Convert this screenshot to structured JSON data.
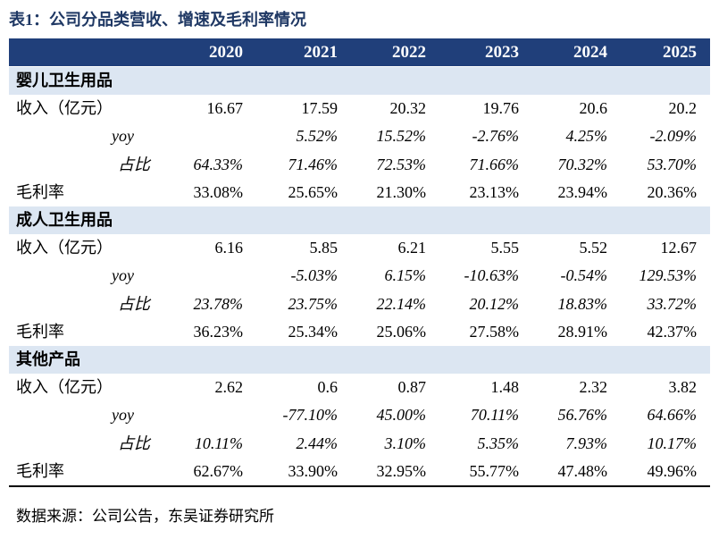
{
  "header": {
    "title": "表1：公司分品类营收、增速及毛利率情况"
  },
  "table": {
    "columns": [
      "2020",
      "2021",
      "2022",
      "2023",
      "2024",
      "2025"
    ],
    "sections": [
      {
        "name": "婴儿卫生用品",
        "rows": [
          {
            "label": "收入（亿元）",
            "values": [
              "16.67",
              "17.59",
              "20.32",
              "19.76",
              "20.6",
              "20.2"
            ]
          },
          {
            "label": "yoy",
            "values": [
              null,
              "5.52%",
              "15.52%",
              "-2.76%",
              "4.25%",
              "-2.09%"
            ]
          },
          {
            "label": "占比",
            "values": [
              "64.33%",
              "71.46%",
              "72.53%",
              "71.66%",
              "70.32%",
              "53.70%"
            ]
          },
          {
            "label": "毛利率",
            "values": [
              "33.08%",
              "25.65%",
              "21.30%",
              "23.13%",
              "23.94%",
              "20.36%"
            ]
          }
        ]
      },
      {
        "name": "成人卫生用品",
        "rows": [
          {
            "label": "收入（亿元）",
            "values": [
              "6.16",
              "5.85",
              "6.21",
              "5.55",
              "5.52",
              "12.67"
            ]
          },
          {
            "label": "yoy",
            "values": [
              null,
              "-5.03%",
              "6.15%",
              "-10.63%",
              "-0.54%",
              "129.53%"
            ]
          },
          {
            "label": "占比",
            "values": [
              "23.78%",
              "23.75%",
              "22.14%",
              "20.12%",
              "18.83%",
              "33.72%"
            ]
          },
          {
            "label": "毛利率",
            "values": [
              "36.23%",
              "25.34%",
              "25.06%",
              "27.58%",
              "28.91%",
              "42.37%"
            ]
          }
        ]
      },
      {
        "name": "其他产品",
        "rows": [
          {
            "label": "收入（亿元）",
            "values": [
              "2.62",
              "0.6",
              "0.87",
              "1.48",
              "2.32",
              "3.82"
            ]
          },
          {
            "label": "yoy",
            "values": [
              null,
              "-77.10%",
              "45.00%",
              "70.11%",
              "56.76%",
              "64.66%"
            ]
          },
          {
            "label": "占比",
            "values": [
              "10.11%",
              "2.44%",
              "3.10%",
              "5.35%",
              "7.93%",
              "10.17%"
            ]
          },
          {
            "label": "毛利率",
            "values": [
              "62.67%",
              "33.90%",
              "32.95%",
              "55.77%",
              "47.48%",
              "49.96%"
            ]
          }
        ]
      }
    ]
  },
  "source": "数据来源：公司公告，东吴证券研究所"
}
